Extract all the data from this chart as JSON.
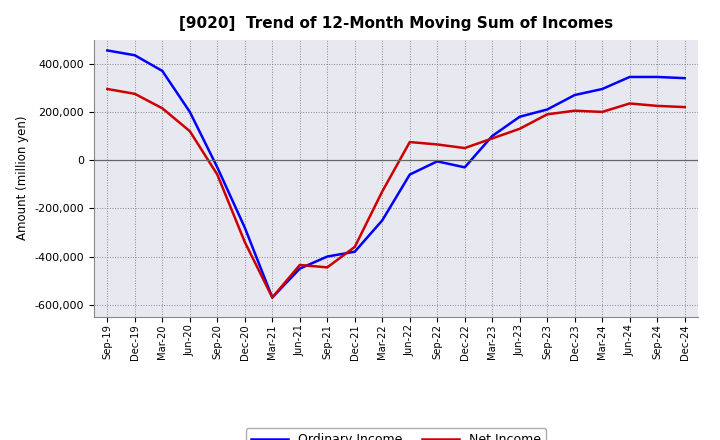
{
  "title": "[9020]  Trend of 12-Month Moving Sum of Incomes",
  "ylabel": "Amount (million yen)",
  "background_color": "#ffffff",
  "grid_color": "#aaaaaa",
  "line_color_ordinary": "#0000ff",
  "line_color_net": "#cc0000",
  "x_labels": [
    "Sep-19",
    "Dec-19",
    "Mar-20",
    "Jun-20",
    "Sep-20",
    "Dec-20",
    "Mar-21",
    "Jun-21",
    "Sep-21",
    "Dec-21",
    "Mar-22",
    "Jun-22",
    "Sep-22",
    "Dec-22",
    "Mar-23",
    "Jun-23",
    "Sep-23",
    "Dec-23",
    "Mar-24",
    "Jun-24",
    "Sep-24",
    "Dec-24"
  ],
  "ordinary_income": [
    455000,
    435000,
    370000,
    200000,
    -30000,
    -280000,
    -570000,
    -450000,
    -400000,
    -380000,
    -250000,
    -60000,
    -5000,
    -30000,
    100000,
    180000,
    210000,
    270000,
    295000,
    345000,
    345000,
    340000
  ],
  "net_income": [
    295000,
    275000,
    215000,
    120000,
    -60000,
    -340000,
    -570000,
    -435000,
    -445000,
    -360000,
    -130000,
    75000,
    65000,
    50000,
    90000,
    130000,
    190000,
    205000,
    200000,
    235000,
    225000,
    220000
  ],
  "ylim": [
    -650000,
    500000
  ],
  "yticks": [
    -600000,
    -400000,
    -200000,
    0,
    200000,
    400000
  ],
  "legend_ordinary": "Ordinary Income",
  "legend_net": "Net Income",
  "figsize": [
    7.2,
    4.4
  ],
  "dpi": 100
}
